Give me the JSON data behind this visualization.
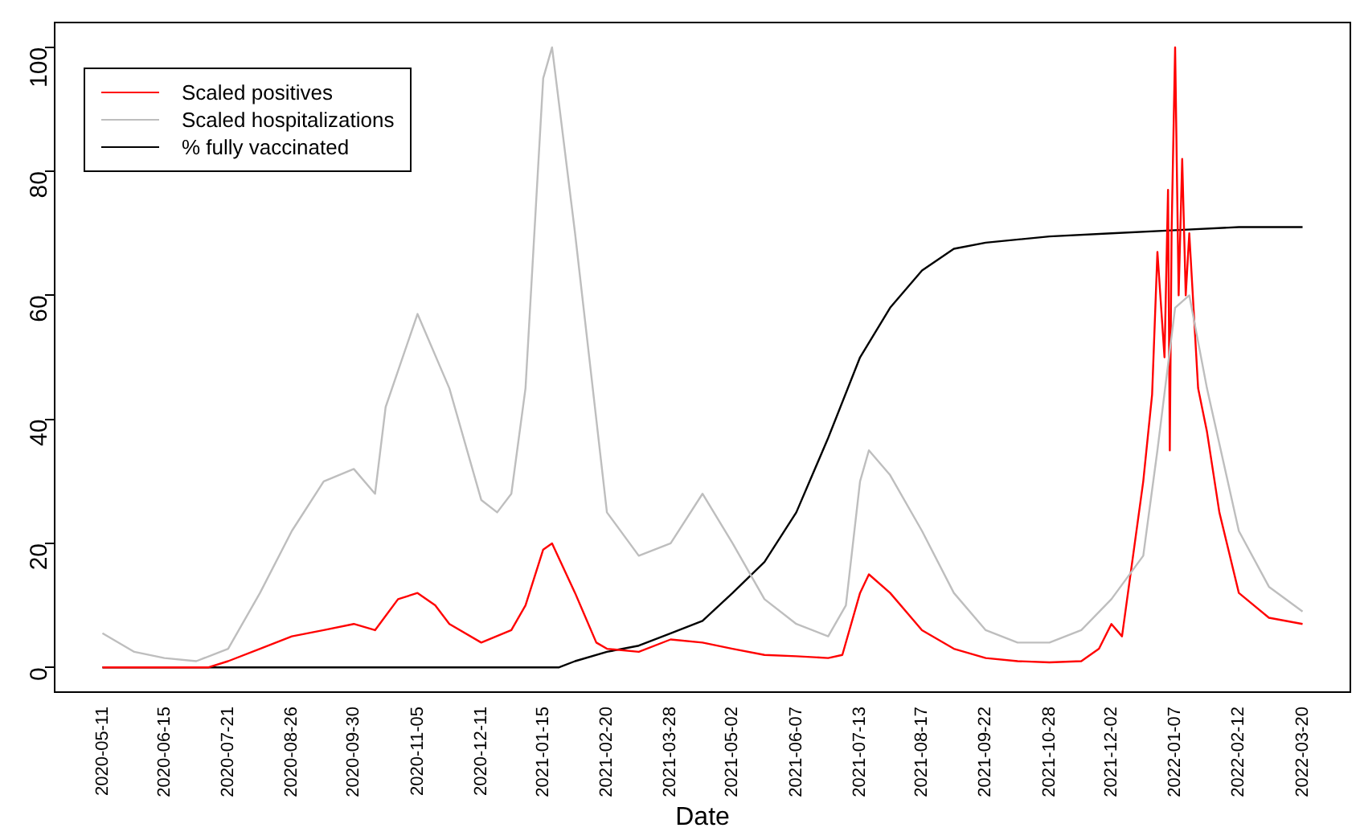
{
  "chart_data": {
    "type": "line",
    "xlabel": "Date",
    "legend": "top left",
    "grid": false,
    "marker": "none",
    "line_style": "solid",
    "xlim": [
      "2020-04-14",
      "2022-04-16"
    ],
    "ylim": [
      -4,
      104
    ],
    "yticks": [
      0,
      20,
      40,
      60,
      80,
      100
    ],
    "xticks": [
      "2020-05-11",
      "2020-06-15",
      "2020-07-21",
      "2020-08-26",
      "2020-09-30",
      "2020-11-05",
      "2020-12-11",
      "2021-01-15",
      "2021-02-20",
      "2021-03-28",
      "2021-05-02",
      "2021-06-07",
      "2021-07-13",
      "2021-08-17",
      "2021-09-22",
      "2021-10-28",
      "2021-12-02",
      "2022-01-07",
      "2022-02-12",
      "2022-03-20"
    ],
    "series": [
      {
        "name": "Scaled hospitalizations",
        "color": "#bebebe",
        "x": [
          "2020-05-11",
          "2020-05-29",
          "2020-06-15",
          "2020-07-03",
          "2020-07-21",
          "2020-08-08",
          "2020-08-26",
          "2020-09-13",
          "2020-09-30",
          "2020-10-12",
          "2020-10-18",
          "2020-11-05",
          "2020-11-23",
          "2020-12-11",
          "2020-12-20",
          "2020-12-28",
          "2021-01-05",
          "2021-01-15",
          "2021-01-20",
          "2021-02-02",
          "2021-02-20",
          "2021-03-10",
          "2021-03-28",
          "2021-04-15",
          "2021-05-02",
          "2021-05-20",
          "2021-06-07",
          "2021-06-25",
          "2021-07-05",
          "2021-07-13",
          "2021-07-18",
          "2021-07-30",
          "2021-08-17",
          "2021-09-04",
          "2021-09-22",
          "2021-10-10",
          "2021-10-28",
          "2021-11-15",
          "2021-12-02",
          "2021-12-20",
          "2021-12-28",
          "2022-01-07",
          "2022-01-15",
          "2022-01-25",
          "2022-02-12",
          "2022-03-01",
          "2022-03-20"
        ],
        "values": [
          5.5,
          2.5,
          1.5,
          1,
          3,
          12,
          22,
          30,
          32,
          28,
          42,
          57,
          45,
          27,
          25,
          28,
          45,
          95,
          100,
          70,
          25,
          18,
          20,
          28,
          20,
          11,
          7,
          5,
          10,
          30,
          35,
          31,
          22,
          12,
          6,
          4,
          4,
          6,
          11,
          18,
          35,
          58,
          60,
          45,
          22,
          13,
          9
        ]
      },
      {
        "name": "Scaled positives",
        "color": "#ff0000",
        "x": [
          "2020-05-11",
          "2020-07-10",
          "2020-07-21",
          "2020-08-08",
          "2020-08-26",
          "2020-09-13",
          "2020-09-30",
          "2020-10-12",
          "2020-10-25",
          "2020-11-05",
          "2020-11-15",
          "2020-11-23",
          "2020-12-11",
          "2020-12-28",
          "2021-01-05",
          "2021-01-15",
          "2021-01-20",
          "2021-02-02",
          "2021-02-14",
          "2021-02-20",
          "2021-03-10",
          "2021-03-28",
          "2021-04-15",
          "2021-05-02",
          "2021-05-20",
          "2021-06-07",
          "2021-06-25",
          "2021-07-03",
          "2021-07-13",
          "2021-07-18",
          "2021-07-30",
          "2021-08-17",
          "2021-09-04",
          "2021-09-22",
          "2021-10-10",
          "2021-10-28",
          "2021-11-15",
          "2021-11-25",
          "2021-12-02",
          "2021-12-08",
          "2021-12-20",
          "2021-12-25",
          "2021-12-28",
          "2022-01-01",
          "2022-01-03",
          "2022-01-04",
          "2022-01-05",
          "2022-01-07",
          "2022-01-09",
          "2022-01-11",
          "2022-01-13",
          "2022-01-15",
          "2022-01-20",
          "2022-01-25",
          "2022-02-01",
          "2022-02-12",
          "2022-03-01",
          "2022-03-20"
        ],
        "values": [
          0,
          0,
          1,
          3,
          5,
          6,
          7,
          6,
          11,
          12,
          10,
          7,
          4,
          6,
          10,
          19,
          20,
          12,
          4,
          3,
          2.5,
          4.5,
          4,
          3,
          2,
          1.8,
          1.5,
          2,
          12,
          15,
          12,
          6,
          3,
          1.5,
          1,
          0.8,
          1,
          3,
          7,
          5,
          30,
          44,
          67,
          50,
          77,
          35,
          70,
          100,
          60,
          82,
          60,
          70,
          45,
          38,
          25,
          12,
          8,
          7
        ]
      },
      {
        "name": "% fully vaccinated",
        "color": "#000000",
        "x": [
          "2020-05-11",
          "2021-01-24",
          "2021-02-02",
          "2021-02-20",
          "2021-03-10",
          "2021-03-28",
          "2021-04-15",
          "2021-05-02",
          "2021-05-20",
          "2021-06-07",
          "2021-06-25",
          "2021-07-13",
          "2021-07-30",
          "2021-08-17",
          "2021-09-04",
          "2021-09-22",
          "2021-10-28",
          "2021-12-02",
          "2022-01-07",
          "2022-02-12",
          "2022-03-20"
        ],
        "values": [
          0,
          0,
          1,
          2.5,
          3.5,
          5.5,
          7.5,
          12,
          17,
          25,
          37,
          50,
          58,
          64,
          67.5,
          68.5,
          69.5,
          70,
          70.5,
          71,
          71
        ]
      }
    ]
  }
}
